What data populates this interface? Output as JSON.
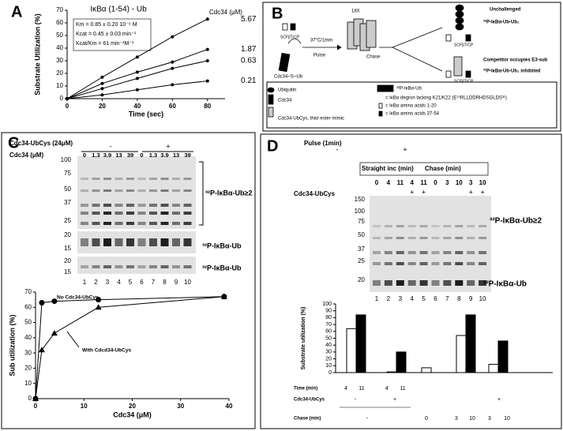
{
  "panel_labels": [
    "A",
    "B",
    "C",
    "D"
  ],
  "chart_data": [
    {
      "type": "line",
      "title": "IκBα (1-54) - Ub",
      "xlabel": "Time (sec)",
      "ylabel": "Substrate Utilization (%)",
      "annotations": [
        "Km = 0.85 ± 0.20 10⁻⁶ M",
        "Kcat = 0.45 ± 0.03 min⁻¹",
        "Kcat/Km = 61 min⁻¹M⁻¹"
      ],
      "legend_title": "Cdc34 (μM)",
      "x": [
        0,
        20,
        40,
        60,
        80
      ],
      "xlim": [
        0,
        90
      ],
      "xticks": [
        0,
        20,
        40,
        60,
        80
      ],
      "ylim": [
        0,
        70
      ],
      "yticks": [
        0,
        10,
        20,
        30,
        40,
        50,
        60,
        70
      ],
      "grid": false,
      "series": [
        {
          "name": "5.67",
          "color": "#000000",
          "marker": "circle",
          "values": [
            0,
            17,
            33,
            49,
            63
          ]
        },
        {
          "name": "1.87",
          "color": "#000000",
          "marker": "circle",
          "values": [
            0,
            12,
            21,
            29,
            39
          ]
        },
        {
          "name": "0.63",
          "color": "#000000",
          "marker": "circle",
          "values": [
            0,
            8,
            16,
            24,
            30
          ]
        },
        {
          "name": "0.21",
          "color": "#000000",
          "marker": "circle",
          "values": [
            0,
            3,
            7,
            11,
            14
          ]
        }
      ]
    },
    {
      "type": "line",
      "xlabel": "Cdc34 (μM)",
      "ylabel": "Sub utilization (%)",
      "x": [
        0,
        1.3,
        3.9,
        13,
        39
      ],
      "xlim": [
        0,
        40
      ],
      "xticks": [
        0,
        10,
        20,
        30,
        40
      ],
      "ylim": [
        0,
        70
      ],
      "yticks": [
        0,
        10,
        20,
        30,
        40,
        50,
        60,
        70
      ],
      "grid": false,
      "series": [
        {
          "name": "No Cdc34-UbCys",
          "color": "#000000",
          "marker": "circle",
          "values": [
            0,
            63,
            64,
            65,
            67
          ]
        },
        {
          "name": "With Cdcd34-UbCys",
          "color": "#000000",
          "marker": "triangle",
          "values": [
            0,
            32,
            43,
            60,
            67
          ]
        }
      ]
    },
    {
      "type": "bar",
      "ylabel": "Substrate utilization (%)",
      "ylim": [
        0,
        100
      ],
      "yticks": [
        0,
        10,
        20,
        30,
        40,
        50,
        60,
        70,
        80,
        90,
        100
      ],
      "grid": false,
      "series": [
        {
          "color": "#ffffff",
          "values": [
            64,
            1,
            7,
            54,
            12
          ]
        },
        {
          "color": "#000000",
          "values": [
            84,
            30,
            null,
            84,
            46
          ]
        }
      ],
      "footer": [
        {
          "label": "Time (min)",
          "entries": [
            "4",
            "11",
            "4",
            "11"
          ]
        },
        {
          "label": "Cdc34-UbCys",
          "entries": [
            "-",
            "+",
            "+"
          ]
        },
        {
          "label": "Chase (min)",
          "entries": [
            "-",
            "0",
            "3",
            "10",
            "3",
            "10"
          ]
        }
      ]
    }
  ],
  "diagram_b": {
    "count": "18X",
    "scf": [
      "SCFβTrCP",
      "SCFβTrCP",
      "SCFβTrCP"
    ],
    "condition": "37°C/1min",
    "pulse": "Pulse",
    "chase": "Chase",
    "thioester": "Cdc34~S~Ub",
    "outcome_top": [
      "Unchallenged",
      "³²P-IκBα-Ub-Ub₂"
    ],
    "outcome_bottom": [
      "Competitor occupies E3-sub",
      "³²P-IκBα-Ub-Ub₂ inhibited"
    ],
    "legend": [
      "Ubiquitin",
      "Cdc34",
      "Cdc34-UbCys, thiol ester mimic",
      "³²P-IκBα-Ub",
      "= IκBα degron lacking K21/K22 (E¹⁹RLLDDRHDSGLDS³¹)",
      "= IκBα amino acids 1-20",
      "= IκBα amino acids 37-54"
    ]
  },
  "gel_c": {
    "treatment": "Cdc34-UbCys (24μM)",
    "signs": [
      "-",
      "+"
    ],
    "conc_label": "Cdc34 (μM)",
    "conc": [
      "0",
      "1.3",
      "3.9",
      "13",
      "39",
      "0",
      "1.3",
      "3.9",
      "13",
      "39"
    ],
    "mw_top": [
      "100",
      "75",
      "50",
      "37",
      "25"
    ],
    "mw_mid": [
      "20",
      "15"
    ],
    "mw_bottom": [
      "20",
      "15"
    ],
    "species": [
      "³²P-IκBα-Ub≥2",
      "³²P-IκBα-Ub",
      "³²P-IκBα-Ub"
    ],
    "lanes": [
      "1",
      "2",
      "3",
      "4",
      "5",
      "6",
      "7",
      "8",
      "9",
      "10"
    ]
  },
  "gel_d": {
    "pulse_label": "Pulse (1min)",
    "signs": [
      "-",
      "+"
    ],
    "straight": "Straight inc (min)",
    "chase": "Chase (min)",
    "times": [
      "0",
      "4",
      "11",
      "4",
      "11",
      "0",
      "3",
      "10",
      "3",
      "10"
    ],
    "ubcys_label": "Cdc34-UbCys",
    "ubcys": [
      null,
      null,
      null,
      "+",
      "+",
      null,
      null,
      null,
      "+",
      "+"
    ],
    "mw": [
      "150",
      "100",
      "75",
      "50",
      "37",
      "25",
      "20"
    ],
    "species": [
      "³²P-IκBα-Ub≥2",
      "³²P-IκBα-Ub"
    ],
    "lanes": [
      "1",
      "2",
      "3",
      "4",
      "5",
      "6",
      "7",
      "8",
      "9",
      "10"
    ]
  }
}
